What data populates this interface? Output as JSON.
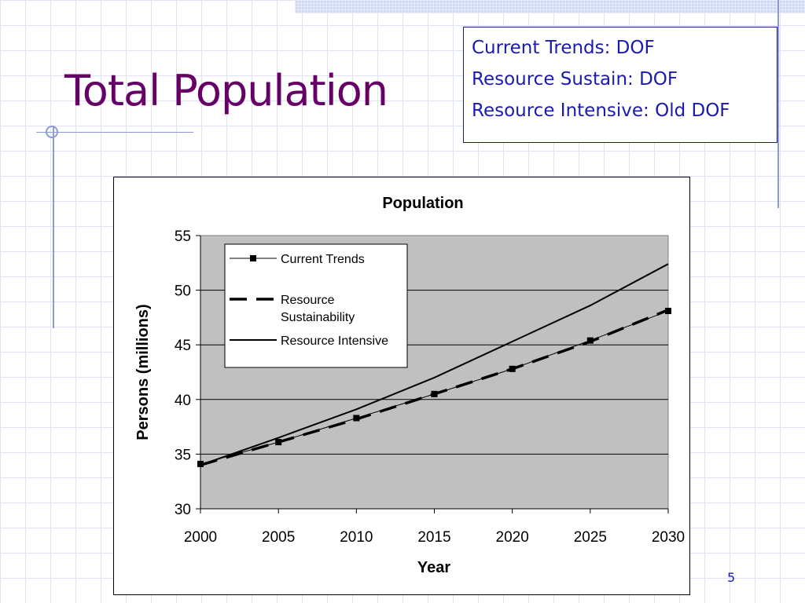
{
  "slide": {
    "title": "Total Population",
    "scenarios": [
      "Current Trends: DOF",
      "Resource Sustain: DOF",
      "Resource Intensive: Old DOF"
    ],
    "page_number": "5"
  },
  "chart_data": {
    "type": "line",
    "title": "Population",
    "xlabel": "Year",
    "ylabel": "Persons (millions)",
    "xlim": [
      2000,
      2030
    ],
    "ylim": [
      30,
      55
    ],
    "x_ticks": [
      "2000",
      "2005",
      "2010",
      "2015",
      "2020",
      "2025",
      "2030"
    ],
    "y_ticks": [
      "30",
      "35",
      "40",
      "45",
      "50",
      "55"
    ],
    "grid": "horizontal",
    "legend": "top-left",
    "colors": {
      "plot_bg": "#c0c0c0",
      "series": "#000000"
    },
    "series": [
      {
        "name": "Current Trends",
        "style": "thin-line-square-markers",
        "points": [
          [
            2000,
            34.1
          ],
          [
            2005,
            36.1
          ],
          [
            2010,
            38.3
          ],
          [
            2015,
            40.5
          ],
          [
            2020,
            42.8
          ],
          [
            2025,
            45.4
          ],
          [
            2030,
            48.1
          ]
        ]
      },
      {
        "name": "Resource Sustainability",
        "legend_lines": [
          "Resource",
          "Sustainability"
        ],
        "style": "thick-dashed",
        "points": [
          [
            2000,
            34.0
          ],
          [
            2005,
            36.1
          ],
          [
            2010,
            38.2
          ],
          [
            2015,
            40.5
          ],
          [
            2020,
            42.8
          ],
          [
            2025,
            45.3
          ],
          [
            2030,
            48.2
          ]
        ]
      },
      {
        "name": "Resource Intensive",
        "style": "solid",
        "points": [
          [
            2000,
            34.0
          ],
          [
            2005,
            36.5
          ],
          [
            2010,
            39.1
          ],
          [
            2015,
            42.0
          ],
          [
            2020,
            45.3
          ],
          [
            2025,
            48.6
          ],
          [
            2030,
            52.4
          ]
        ]
      }
    ]
  }
}
